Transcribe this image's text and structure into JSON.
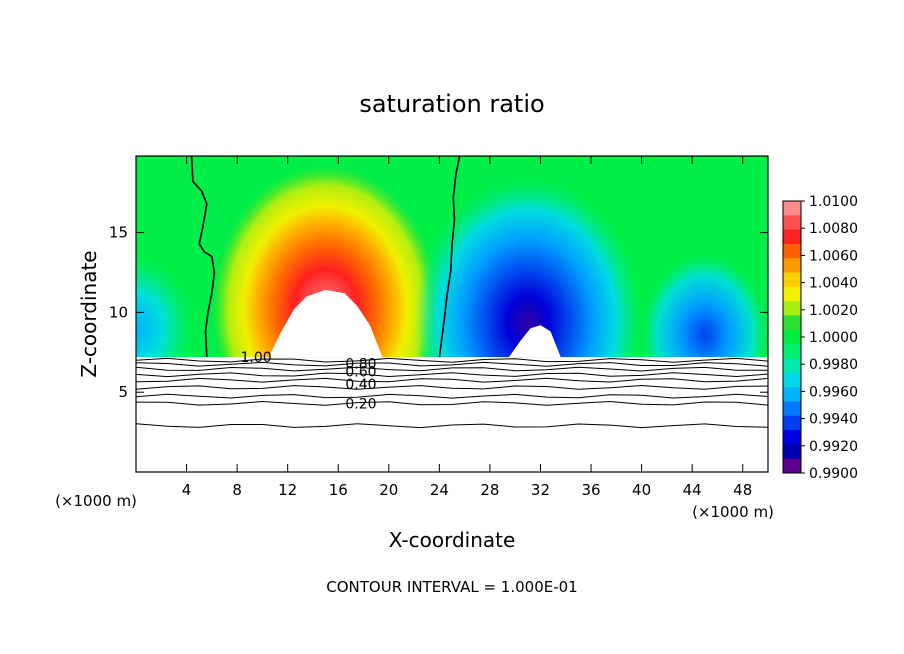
{
  "chart_data": {
    "type": "heatmap",
    "title": "saturation ratio",
    "xlabel": "X-coordinate",
    "ylabel": "Z-coordinate",
    "x_unit_label": "(×1000 m)",
    "x_ticks": [
      4,
      8,
      12,
      16,
      20,
      24,
      28,
      32,
      36,
      40,
      44,
      48
    ],
    "y_ticks": [
      5,
      10,
      15
    ],
    "xlim": [
      0,
      50
    ],
    "ylim": [
      0,
      19.8
    ],
    "footer": "CONTOUR INTERVAL = 1.000E-01",
    "colorbar": {
      "labels": [
        "1.0100",
        "1.0080",
        "1.0060",
        "1.0040",
        "1.0020",
        "1.0000",
        "0.9980",
        "0.9960",
        "0.9940",
        "0.9920",
        "0.9900"
      ],
      "colors": [
        "#ff8c8c",
        "#ff5050",
        "#ff2020",
        "#ff6000",
        "#ff9a00",
        "#ffd000",
        "#f0f000",
        "#a8ee10",
        "#30e030",
        "#00ee40",
        "#00f070",
        "#00eab0",
        "#00d8e8",
        "#00b4ff",
        "#0078ff",
        "#0040f0",
        "#0000e0",
        "#0000b0",
        "#600090"
      ]
    },
    "contours": [
      {
        "label": "1.00",
        "level": 1.0
      },
      {
        "label": "0.80",
        "level": 0.8
      },
      {
        "label": "0.60",
        "level": 0.6
      },
      {
        "label": "0.40",
        "level": 0.4
      },
      {
        "label": "0.20",
        "level": 0.2
      }
    ],
    "features": {
      "saturated_column_x": [
        5.5,
        25
      ],
      "supersaturated_core_x": 15,
      "subsaturated_core_x": 31,
      "surface_z": 7.2
    }
  }
}
